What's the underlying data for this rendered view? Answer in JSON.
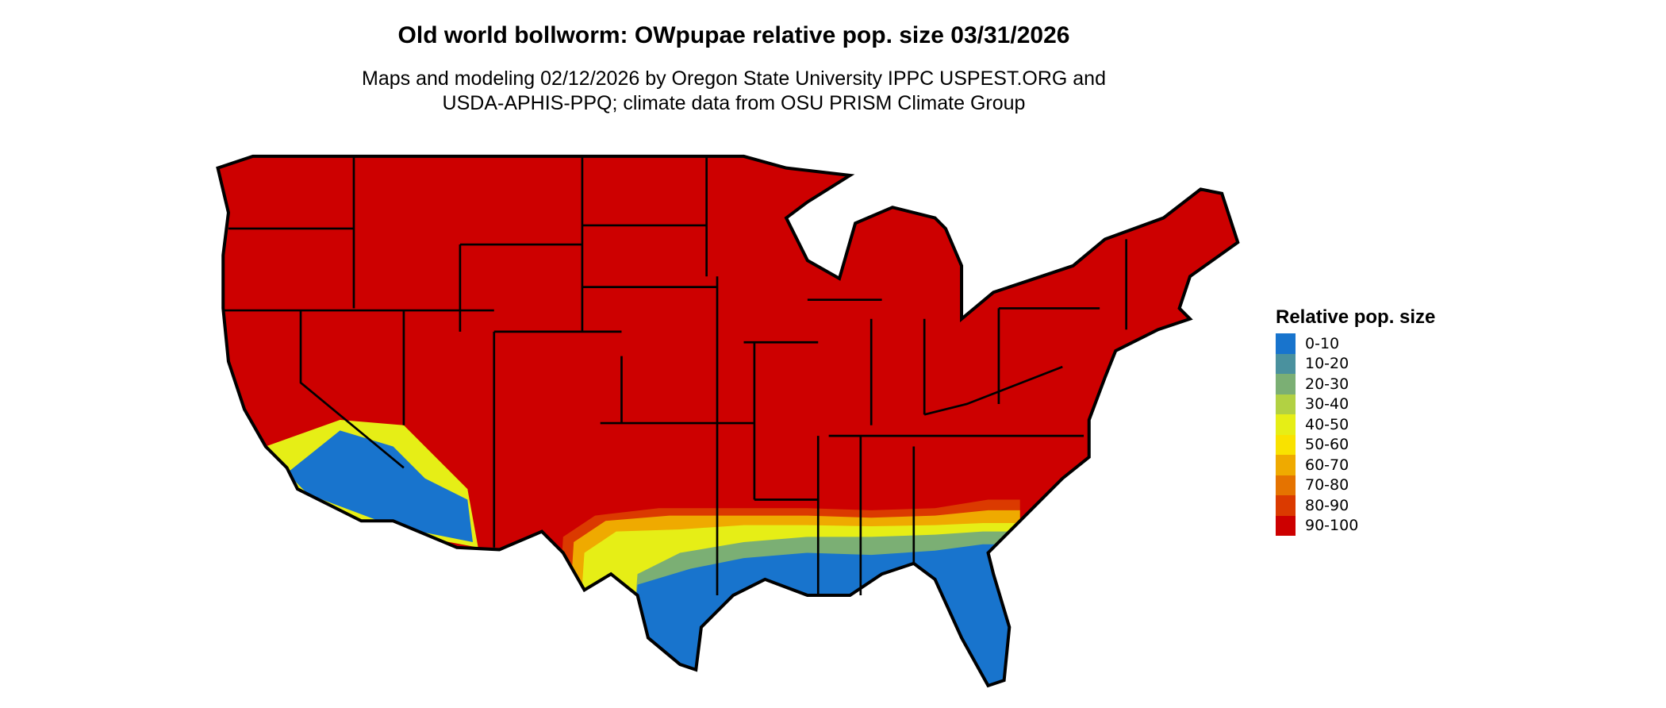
{
  "title": "Old world bollworm: OWpupae relative pop. size 03/31/2026",
  "subtitle_line1": "Maps and modeling 02/12/2026 by Oregon State University IPPC USPEST.ORG and",
  "subtitle_line2": "USDA-APHIS-PPQ; climate data from OSU PRISM Climate Group",
  "legend": {
    "title": "Relative pop. size",
    "items": [
      {
        "label": "0-10",
        "color": "#1874CD"
      },
      {
        "label": "10-20",
        "color": "#4A919E"
      },
      {
        "label": "20-30",
        "color": "#7BAF74"
      },
      {
        "label": "30-40",
        "color": "#B2D143"
      },
      {
        "label": "40-50",
        "color": "#E6EE16"
      },
      {
        "label": "50-60",
        "color": "#F9E200"
      },
      {
        "label": "60-70",
        "color": "#EFAA00"
      },
      {
        "label": "70-80",
        "color": "#E57300"
      },
      {
        "label": "80-90",
        "color": "#DB3A00"
      },
      {
        "label": "90-100",
        "color": "#CD0000"
      }
    ]
  }
}
